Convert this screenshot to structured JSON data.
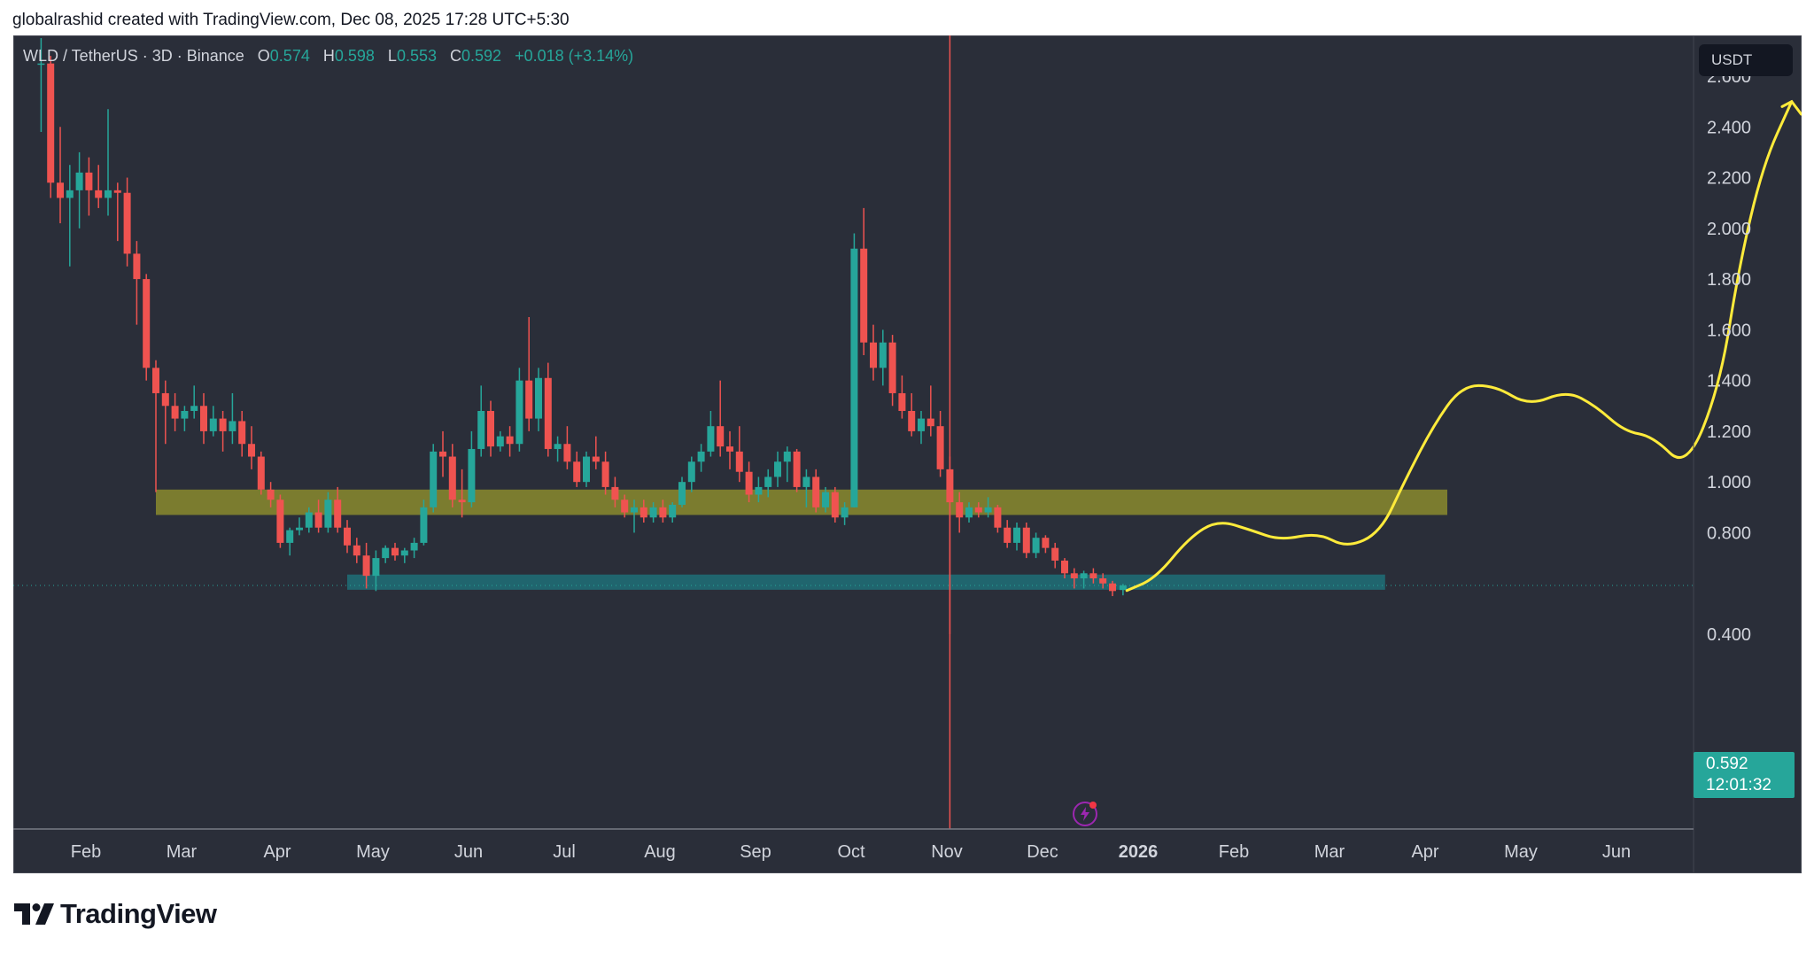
{
  "header": {
    "credit": "globalrashid created with TradingView.com, Dec 08, 2025 17:28 UTC+5:30"
  },
  "legend": {
    "symbol": "WLD / TetherUS · 3D · Binance",
    "o_label": "O",
    "o_value": "0.574",
    "h_label": "H",
    "h_value": "0.598",
    "l_label": "L",
    "l_value": "0.553",
    "c_label": "C",
    "c_value": "0.592",
    "change": "+0.018 (+3.14%)"
  },
  "price_axis": {
    "unit": "USDT",
    "current_price": "0.592",
    "countdown": "12:01:32"
  },
  "brand": {
    "name": "TradingView"
  },
  "colors": {
    "background": "#2a2e39",
    "up": "#26a69a",
    "down": "#ef5350",
    "axis_text": "#d1d4dc",
    "resistance_zone": "#8a8a2e",
    "support_zone": "#1f6f78",
    "projection": "#ffeb3b"
  },
  "chart_data": {
    "type": "candlestick",
    "interval": "3D",
    "y_axis": {
      "scale": "linear",
      "range": [
        0.4,
        2.75
      ],
      "ticks": [
        "2.600",
        "2.400",
        "2.200",
        "2.000",
        "1.800",
        "1.600",
        "1.400",
        "1.200",
        "1.000",
        "0.800",
        "0.400"
      ]
    },
    "x_axis": {
      "ticks": [
        "Feb",
        "Mar",
        "Apr",
        "May",
        "Jun",
        "Jul",
        "Aug",
        "Sep",
        "Oct",
        "Nov",
        "Dec",
        "2026",
        "Feb",
        "Mar",
        "Apr",
        "May",
        "Jun"
      ]
    },
    "grid": false,
    "candles": [
      {
        "month": 0.55,
        "o": 2.65,
        "h": 2.75,
        "l": 2.38,
        "c": 2.65
      },
      {
        "month": 0.65,
        "o": 2.65,
        "h": 2.68,
        "l": 2.12,
        "c": 2.18
      },
      {
        "month": 0.75,
        "o": 2.18,
        "h": 2.4,
        "l": 2.02,
        "c": 2.12
      },
      {
        "month": 0.85,
        "o": 2.12,
        "h": 2.25,
        "l": 1.85,
        "c": 2.15
      },
      {
        "month": 0.95,
        "o": 2.15,
        "h": 2.3,
        "l": 2.0,
        "c": 2.22
      },
      {
        "month": 1.05,
        "o": 2.22,
        "h": 2.28,
        "l": 2.05,
        "c": 2.15
      },
      {
        "month": 1.15,
        "o": 2.15,
        "h": 2.25,
        "l": 2.08,
        "c": 2.12
      },
      {
        "month": 1.25,
        "o": 2.12,
        "h": 2.47,
        "l": 2.05,
        "c": 2.15
      },
      {
        "month": 1.35,
        "o": 2.15,
        "h": 2.18,
        "l": 1.95,
        "c": 2.14
      },
      {
        "month": 1.45,
        "o": 2.14,
        "h": 2.2,
        "l": 1.85,
        "c": 1.9
      },
      {
        "month": 1.55,
        "o": 1.9,
        "h": 1.95,
        "l": 1.62,
        "c": 1.8
      },
      {
        "month": 1.65,
        "o": 1.8,
        "h": 1.82,
        "l": 1.4,
        "c": 1.45
      },
      {
        "month": 1.75,
        "o": 1.45,
        "h": 1.48,
        "l": 0.96,
        "c": 1.35
      },
      {
        "month": 1.85,
        "o": 1.35,
        "h": 1.4,
        "l": 1.15,
        "c": 1.3
      },
      {
        "month": 1.95,
        "o": 1.3,
        "h": 1.35,
        "l": 1.2,
        "c": 1.25
      },
      {
        "month": 2.05,
        "o": 1.25,
        "h": 1.3,
        "l": 1.2,
        "c": 1.28
      },
      {
        "month": 2.15,
        "o": 1.28,
        "h": 1.38,
        "l": 1.25,
        "c": 1.3
      },
      {
        "month": 2.25,
        "o": 1.3,
        "h": 1.35,
        "l": 1.15,
        "c": 1.2
      },
      {
        "month": 2.35,
        "o": 1.2,
        "h": 1.3,
        "l": 1.18,
        "c": 1.25
      },
      {
        "month": 2.45,
        "o": 1.25,
        "h": 1.28,
        "l": 1.12,
        "c": 1.2
      },
      {
        "month": 2.55,
        "o": 1.2,
        "h": 1.35,
        "l": 1.15,
        "c": 1.24
      },
      {
        "month": 2.65,
        "o": 1.24,
        "h": 1.28,
        "l": 1.1,
        "c": 1.15
      },
      {
        "month": 2.75,
        "o": 1.15,
        "h": 1.22,
        "l": 1.05,
        "c": 1.1
      },
      {
        "month": 2.85,
        "o": 1.1,
        "h": 1.12,
        "l": 0.95,
        "c": 0.97
      },
      {
        "month": 2.95,
        "o": 0.97,
        "h": 1.0,
        "l": 0.9,
        "c": 0.93
      },
      {
        "month": 3.05,
        "o": 0.93,
        "h": 0.95,
        "l": 0.74,
        "c": 0.76
      },
      {
        "month": 3.15,
        "o": 0.76,
        "h": 0.82,
        "l": 0.71,
        "c": 0.81
      },
      {
        "month": 3.25,
        "o": 0.81,
        "h": 0.86,
        "l": 0.79,
        "c": 0.82
      },
      {
        "month": 3.35,
        "o": 0.82,
        "h": 0.9,
        "l": 0.8,
        "c": 0.88
      },
      {
        "month": 3.45,
        "o": 0.88,
        "h": 0.93,
        "l": 0.8,
        "c": 0.82
      },
      {
        "month": 3.55,
        "o": 0.82,
        "h": 0.96,
        "l": 0.8,
        "c": 0.93
      },
      {
        "month": 3.65,
        "o": 0.93,
        "h": 0.98,
        "l": 0.8,
        "c": 0.82
      },
      {
        "month": 3.75,
        "o": 0.82,
        "h": 0.85,
        "l": 0.72,
        "c": 0.75
      },
      {
        "month": 3.85,
        "o": 0.75,
        "h": 0.78,
        "l": 0.68,
        "c": 0.71
      },
      {
        "month": 3.95,
        "o": 0.71,
        "h": 0.76,
        "l": 0.58,
        "c": 0.63
      },
      {
        "month": 4.05,
        "o": 0.63,
        "h": 0.73,
        "l": 0.57,
        "c": 0.7
      },
      {
        "month": 4.15,
        "o": 0.7,
        "h": 0.75,
        "l": 0.68,
        "c": 0.74
      },
      {
        "month": 4.25,
        "o": 0.74,
        "h": 0.76,
        "l": 0.69,
        "c": 0.71
      },
      {
        "month": 4.35,
        "o": 0.71,
        "h": 0.74,
        "l": 0.68,
        "c": 0.73
      },
      {
        "month": 4.45,
        "o": 0.73,
        "h": 0.78,
        "l": 0.7,
        "c": 0.76
      },
      {
        "month": 4.55,
        "o": 0.76,
        "h": 0.93,
        "l": 0.75,
        "c": 0.9
      },
      {
        "month": 4.65,
        "o": 0.9,
        "h": 1.15,
        "l": 0.88,
        "c": 1.12
      },
      {
        "month": 4.75,
        "o": 1.12,
        "h": 1.2,
        "l": 1.02,
        "c": 1.1
      },
      {
        "month": 4.85,
        "o": 1.1,
        "h": 1.15,
        "l": 0.9,
        "c": 0.93
      },
      {
        "month": 4.95,
        "o": 0.93,
        "h": 1.05,
        "l": 0.86,
        "c": 0.92
      },
      {
        "month": 5.05,
        "o": 0.92,
        "h": 1.2,
        "l": 0.9,
        "c": 1.13
      },
      {
        "month": 5.15,
        "o": 1.13,
        "h": 1.38,
        "l": 1.1,
        "c": 1.28
      },
      {
        "month": 5.25,
        "o": 1.28,
        "h": 1.32,
        "l": 1.1,
        "c": 1.14
      },
      {
        "month": 5.35,
        "o": 1.14,
        "h": 1.2,
        "l": 1.12,
        "c": 1.18
      },
      {
        "month": 5.45,
        "o": 1.18,
        "h": 1.22,
        "l": 1.1,
        "c": 1.15
      },
      {
        "month": 5.55,
        "o": 1.15,
        "h": 1.45,
        "l": 1.12,
        "c": 1.4
      },
      {
        "month": 5.65,
        "o": 1.4,
        "h": 1.65,
        "l": 1.2,
        "c": 1.25
      },
      {
        "month": 5.75,
        "o": 1.25,
        "h": 1.45,
        "l": 1.2,
        "c": 1.41
      },
      {
        "month": 5.85,
        "o": 1.41,
        "h": 1.47,
        "l": 1.1,
        "c": 1.13
      },
      {
        "month": 5.95,
        "o": 1.13,
        "h": 1.18,
        "l": 1.08,
        "c": 1.15
      },
      {
        "month": 6.05,
        "o": 1.15,
        "h": 1.22,
        "l": 1.05,
        "c": 1.08
      },
      {
        "month": 6.15,
        "o": 1.08,
        "h": 1.12,
        "l": 0.98,
        "c": 1.0
      },
      {
        "month": 6.25,
        "o": 1.0,
        "h": 1.12,
        "l": 0.98,
        "c": 1.1
      },
      {
        "month": 6.35,
        "o": 1.1,
        "h": 1.18,
        "l": 1.05,
        "c": 1.08
      },
      {
        "month": 6.45,
        "o": 1.08,
        "h": 1.12,
        "l": 0.95,
        "c": 0.98
      },
      {
        "month": 6.55,
        "o": 0.98,
        "h": 1.02,
        "l": 0.9,
        "c": 0.93
      },
      {
        "month": 6.65,
        "o": 0.93,
        "h": 0.95,
        "l": 0.86,
        "c": 0.88
      },
      {
        "month": 6.75,
        "o": 0.88,
        "h": 0.93,
        "l": 0.8,
        "c": 0.9
      },
      {
        "month": 6.85,
        "o": 0.9,
        "h": 0.93,
        "l": 0.84,
        "c": 0.86
      },
      {
        "month": 6.95,
        "o": 0.86,
        "h": 0.92,
        "l": 0.84,
        "c": 0.9
      },
      {
        "month": 7.05,
        "o": 0.9,
        "h": 0.93,
        "l": 0.84,
        "c": 0.86
      },
      {
        "month": 7.15,
        "o": 0.86,
        "h": 0.92,
        "l": 0.84,
        "c": 0.91
      },
      {
        "month": 7.25,
        "o": 0.91,
        "h": 1.02,
        "l": 0.9,
        "c": 1.0
      },
      {
        "month": 7.35,
        "o": 1.0,
        "h": 1.1,
        "l": 0.96,
        "c": 1.08
      },
      {
        "month": 7.45,
        "o": 1.08,
        "h": 1.15,
        "l": 1.04,
        "c": 1.12
      },
      {
        "month": 7.55,
        "o": 1.12,
        "h": 1.28,
        "l": 1.1,
        "c": 1.22
      },
      {
        "month": 7.65,
        "o": 1.22,
        "h": 1.4,
        "l": 1.1,
        "c": 1.14
      },
      {
        "month": 7.75,
        "o": 1.14,
        "h": 1.2,
        "l": 1.05,
        "c": 1.12
      },
      {
        "month": 7.85,
        "o": 1.12,
        "h": 1.22,
        "l": 1.0,
        "c": 1.04
      },
      {
        "month": 7.95,
        "o": 1.04,
        "h": 1.08,
        "l": 0.92,
        "c": 0.95
      },
      {
        "month": 8.05,
        "o": 0.95,
        "h": 1.02,
        "l": 0.92,
        "c": 0.98
      },
      {
        "month": 8.15,
        "o": 0.98,
        "h": 1.05,
        "l": 0.94,
        "c": 1.02
      },
      {
        "month": 8.25,
        "o": 1.02,
        "h": 1.12,
        "l": 0.98,
        "c": 1.08
      },
      {
        "month": 8.35,
        "o": 1.08,
        "h": 1.14,
        "l": 1.0,
        "c": 1.12
      },
      {
        "month": 8.45,
        "o": 1.12,
        "h": 1.13,
        "l": 0.96,
        "c": 0.98
      },
      {
        "month": 8.55,
        "o": 0.98,
        "h": 1.05,
        "l": 0.9,
        "c": 1.02
      },
      {
        "month": 8.65,
        "o": 1.02,
        "h": 1.05,
        "l": 0.88,
        "c": 0.9
      },
      {
        "month": 8.75,
        "o": 0.9,
        "h": 0.98,
        "l": 0.88,
        "c": 0.96
      },
      {
        "month": 8.85,
        "o": 0.96,
        "h": 0.98,
        "l": 0.84,
        "c": 0.86
      },
      {
        "month": 8.95,
        "o": 0.86,
        "h": 0.92,
        "l": 0.83,
        "c": 0.9
      },
      {
        "month": 9.05,
        "o": 0.9,
        "h": 1.98,
        "l": 0.9,
        "c": 1.92
      },
      {
        "month": 9.15,
        "o": 1.92,
        "h": 2.08,
        "l": 1.5,
        "c": 1.55
      },
      {
        "month": 9.25,
        "o": 1.55,
        "h": 1.62,
        "l": 1.4,
        "c": 1.45
      },
      {
        "month": 9.35,
        "o": 1.45,
        "h": 1.6,
        "l": 1.38,
        "c": 1.55
      },
      {
        "month": 9.45,
        "o": 1.55,
        "h": 1.58,
        "l": 1.3,
        "c": 1.35
      },
      {
        "month": 9.55,
        "o": 1.35,
        "h": 1.42,
        "l": 1.25,
        "c": 1.28
      },
      {
        "month": 9.65,
        "o": 1.28,
        "h": 1.35,
        "l": 1.18,
        "c": 1.2
      },
      {
        "month": 9.75,
        "o": 1.2,
        "h": 1.28,
        "l": 1.15,
        "c": 1.25
      },
      {
        "month": 9.85,
        "o": 1.25,
        "h": 1.38,
        "l": 1.18,
        "c": 1.22
      },
      {
        "month": 9.95,
        "o": 1.22,
        "h": 1.28,
        "l": 1.02,
        "c": 1.05
      },
      {
        "month": 10.05,
        "o": 1.05,
        "h": 1.1,
        "l": 0.4,
        "c": 0.92
      },
      {
        "month": 10.15,
        "o": 0.92,
        "h": 0.96,
        "l": 0.8,
        "c": 0.86
      },
      {
        "month": 10.25,
        "o": 0.86,
        "h": 0.92,
        "l": 0.84,
        "c": 0.9
      },
      {
        "month": 10.35,
        "o": 0.9,
        "h": 0.92,
        "l": 0.86,
        "c": 0.88
      },
      {
        "month": 10.45,
        "o": 0.88,
        "h": 0.94,
        "l": 0.86,
        "c": 0.9
      },
      {
        "month": 10.55,
        "o": 0.9,
        "h": 0.91,
        "l": 0.8,
        "c": 0.82
      },
      {
        "month": 10.65,
        "o": 0.82,
        "h": 0.85,
        "l": 0.74,
        "c": 0.76
      },
      {
        "month": 10.75,
        "o": 0.76,
        "h": 0.84,
        "l": 0.73,
        "c": 0.82
      },
      {
        "month": 10.85,
        "o": 0.82,
        "h": 0.84,
        "l": 0.7,
        "c": 0.72
      },
      {
        "month": 10.95,
        "o": 0.72,
        "h": 0.8,
        "l": 0.7,
        "c": 0.78
      },
      {
        "month": 11.05,
        "o": 0.78,
        "h": 0.79,
        "l": 0.72,
        "c": 0.74
      },
      {
        "month": 11.15,
        "o": 0.74,
        "h": 0.76,
        "l": 0.66,
        "c": 0.69
      },
      {
        "month": 11.25,
        "o": 0.69,
        "h": 0.7,
        "l": 0.62,
        "c": 0.64
      },
      {
        "month": 11.35,
        "o": 0.64,
        "h": 0.66,
        "l": 0.58,
        "c": 0.62
      },
      {
        "month": 11.45,
        "o": 0.62,
        "h": 0.65,
        "l": 0.58,
        "c": 0.64
      },
      {
        "month": 11.55,
        "o": 0.64,
        "h": 0.66,
        "l": 0.6,
        "c": 0.62
      },
      {
        "month": 11.65,
        "o": 0.62,
        "h": 0.64,
        "l": 0.58,
        "c": 0.6
      },
      {
        "month": 11.75,
        "o": 0.6,
        "h": 0.61,
        "l": 0.55,
        "c": 0.57
      },
      {
        "month": 11.86,
        "o": 0.574,
        "h": 0.598,
        "l": 0.553,
        "c": 0.592
      }
    ],
    "zones": [
      {
        "name": "resistance",
        "from_month": 1.75,
        "to_month": 15.25,
        "low": 0.87,
        "high": 0.97
      },
      {
        "name": "support",
        "from_month": 3.75,
        "to_month": 14.6,
        "low": 0.575,
        "high": 0.635
      }
    ],
    "current_price_line": 0.592,
    "event_line_month": 10.05,
    "projection": [
      [
        11.9,
        0.572
      ],
      [
        12.2,
        0.62
      ],
      [
        12.55,
        0.78
      ],
      [
        12.85,
        0.85
      ],
      [
        13.2,
        0.81
      ],
      [
        13.5,
        0.77
      ],
      [
        13.9,
        0.8
      ],
      [
        14.2,
        0.74
      ],
      [
        14.55,
        0.8
      ],
      [
        14.8,
        1.0
      ],
      [
        15.1,
        1.22
      ],
      [
        15.4,
        1.38
      ],
      [
        15.75,
        1.38
      ],
      [
        16.1,
        1.3
      ],
      [
        16.5,
        1.36
      ],
      [
        16.8,
        1.3
      ],
      [
        17.1,
        1.2
      ],
      [
        17.4,
        1.18
      ],
      [
        17.75,
        1.05
      ],
      [
        18.1,
        1.38
      ],
      [
        18.3,
        1.85
      ],
      [
        18.55,
        2.25
      ],
      [
        18.85,
        2.5
      ]
    ],
    "projection_arrowhead": [
      [
        18.75,
        2.48
      ],
      [
        18.85,
        2.5
      ],
      [
        18.95,
        2.45
      ]
    ]
  }
}
